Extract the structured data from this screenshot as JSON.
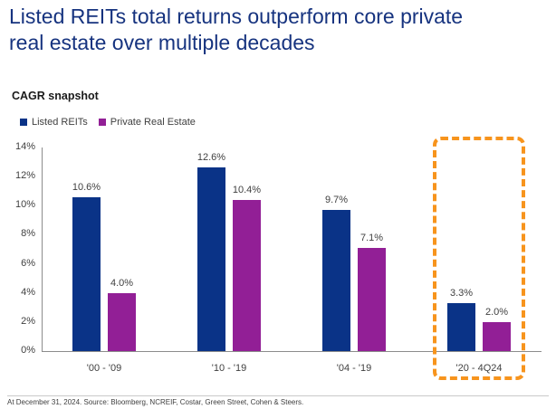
{
  "header": {
    "title_line1": "Listed REITs total returns outperform core private",
    "title_line2": "real estate over multiple decades",
    "title_color": "#16337F"
  },
  "chart_data": {
    "type": "bar",
    "title": "CAGR snapshot",
    "categories": [
      "'00 - '09",
      "'10 - '19",
      "'04 - '19",
      "'20 - 4Q24"
    ],
    "series": [
      {
        "name": "Listed REITs",
        "color": "#0A3387",
        "values": [
          10.6,
          12.6,
          9.7,
          3.3
        ]
      },
      {
        "name": "Private Real Estate",
        "color": "#921F96",
        "values": [
          4.0,
          10.4,
          7.1,
          2.0
        ]
      }
    ],
    "value_labels": [
      [
        "10.6%",
        "12.6%",
        "9.7%",
        "3.3%"
      ],
      [
        "4.0%",
        "10.4%",
        "7.1%",
        "2.0%"
      ]
    ],
    "xlabel": "",
    "ylabel": "",
    "ylim": [
      0,
      14
    ],
    "ytick_step": 2,
    "ytick_suffix": "%",
    "grid": false,
    "legend_position": "top-left",
    "highlight": {
      "category": "'20 - 4Q24",
      "category_index": 3,
      "style": "orange-dashed-box",
      "color": "#F7941D"
    }
  },
  "footer": {
    "source": "At December 31, 2024. Source: Bloomberg, NCREIF, Costar, Green Street, Cohen & Steers."
  }
}
